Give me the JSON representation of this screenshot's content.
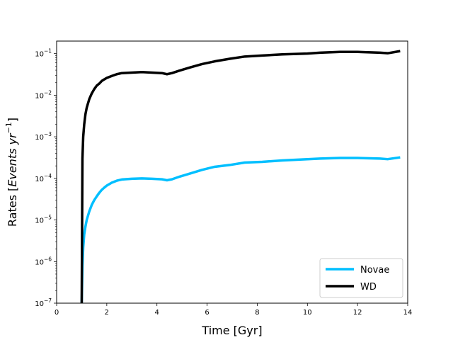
{
  "chart_data": {
    "type": "line",
    "xlabel": "Time [Gyr]",
    "ylabel_prefix": "Rates [",
    "ylabel_math": "Events yr",
    "ylabel_exp": "−1",
    "ylabel_suffix": "]",
    "xlim": [
      0,
      14
    ],
    "ylim": [
      1e-07,
      0.2
    ],
    "yscale": "log",
    "grid": false,
    "legend_placement": "lower-right",
    "x_ticks": [
      0,
      2,
      4,
      6,
      8,
      10,
      12,
      14
    ],
    "x_tick_labels": [
      "0",
      "2",
      "4",
      "6",
      "8",
      "10",
      "12",
      "14"
    ],
    "y_ticks": [
      {
        "value": 1e-07,
        "base": "10",
        "exp": "−7"
      },
      {
        "value": 1e-06,
        "base": "10",
        "exp": "−6"
      },
      {
        "value": 1e-05,
        "base": "10",
        "exp": "−5"
      },
      {
        "value": 0.0001,
        "base": "10",
        "exp": "−4"
      },
      {
        "value": 0.001,
        "base": "10",
        "exp": "−3"
      },
      {
        "value": 0.01,
        "base": "10",
        "exp": "−2"
      },
      {
        "value": 0.1,
        "base": "10",
        "exp": "−1"
      }
    ],
    "series": [
      {
        "name": "Novae",
        "color": "#00bfff",
        "x": [
          1.0,
          1.03,
          1.06,
          1.1,
          1.15,
          1.2,
          1.3,
          1.4,
          1.5,
          1.6,
          1.7,
          1.8,
          1.9,
          2.0,
          2.2,
          2.4,
          2.6,
          3.0,
          3.4,
          3.8,
          4.2,
          4.4,
          4.6,
          4.9,
          5.3,
          5.8,
          6.3,
          6.9,
          7.5,
          8.2,
          9.0,
          10.0,
          10.5,
          11.3,
          12.0,
          12.9,
          13.2,
          13.7
        ],
        "y": [
          1e-07,
          8e-07,
          2.2e-06,
          4.5e-06,
          7e-06,
          1e-05,
          1.6e-05,
          2.3e-05,
          3e-05,
          3.7e-05,
          4.5e-05,
          5.3e-05,
          6e-05,
          6.7e-05,
          7.9e-05,
          8.8e-05,
          9.4e-05,
          9.8e-05,
          0.0001,
          9.8e-05,
          9.5e-05,
          9e-05,
          9.5e-05,
          0.00011,
          0.00013,
          0.00016,
          0.00019,
          0.00021,
          0.00024,
          0.00025,
          0.00027,
          0.00029,
          0.0003,
          0.00031,
          0.00031,
          0.0003,
          0.00029,
          0.00032
        ]
      },
      {
        "name": "WD",
        "color": "#000000",
        "x": [
          1.0,
          1.03,
          1.06,
          1.1,
          1.15,
          1.2,
          1.3,
          1.4,
          1.5,
          1.6,
          1.7,
          1.8,
          1.9,
          2.0,
          2.2,
          2.4,
          2.6,
          3.0,
          3.4,
          3.8,
          4.2,
          4.4,
          4.6,
          4.9,
          5.3,
          5.8,
          6.3,
          6.9,
          7.5,
          8.2,
          9.0,
          10.0,
          10.5,
          11.3,
          12.0,
          12.9,
          13.2,
          13.7
        ],
        "y": [
          1e-07,
          0.0003,
          0.001,
          0.002,
          0.0035,
          0.005,
          0.008,
          0.011,
          0.014,
          0.017,
          0.019,
          0.022,
          0.024,
          0.026,
          0.029,
          0.032,
          0.034,
          0.035,
          0.036,
          0.035,
          0.034,
          0.032,
          0.034,
          0.039,
          0.046,
          0.056,
          0.065,
          0.075,
          0.085,
          0.09,
          0.096,
          0.1,
          0.105,
          0.11,
          0.11,
          0.105,
          0.102,
          0.115
        ]
      }
    ]
  }
}
